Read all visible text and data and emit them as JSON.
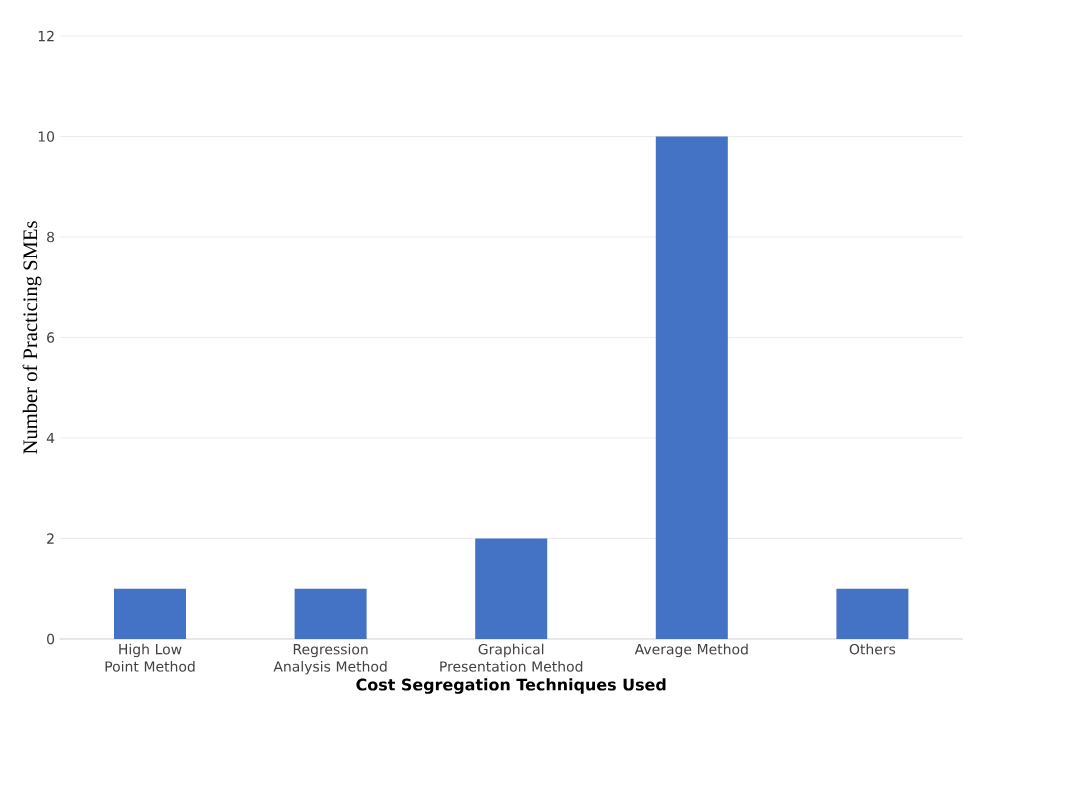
{
  "chart_data": {
    "type": "bar",
    "xlabel": "Cost Segregation Techniques Used",
    "ylabel": "Number of Practicing SMEs",
    "categories": [
      "High Low Point Method",
      "Regression Analysis Method",
      "Graphical Presentation Method",
      "Average Method",
      "Others"
    ],
    "values": [
      1,
      1,
      2,
      10,
      1
    ],
    "color": "#4472c4",
    "ylim": [
      0,
      12
    ],
    "yticks": [
      0,
      2,
      4,
      6,
      8,
      10,
      12
    ],
    "grid": "y"
  }
}
